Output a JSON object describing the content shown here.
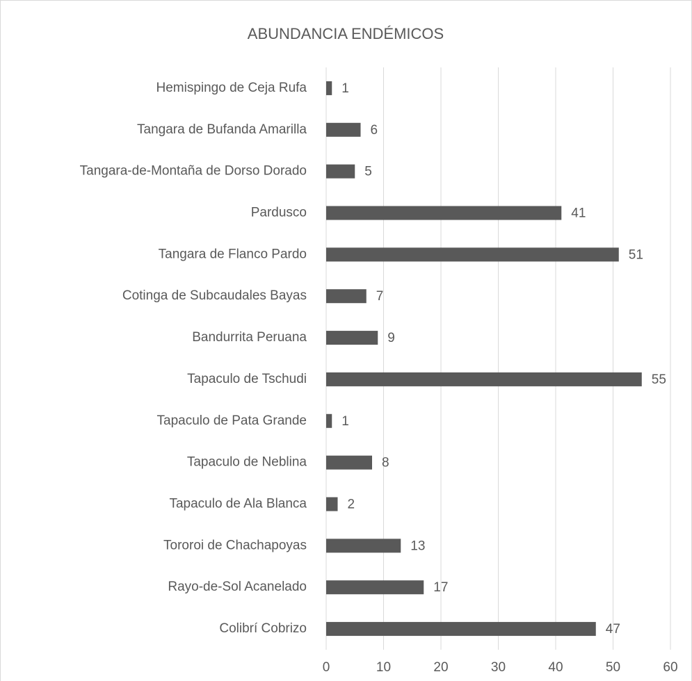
{
  "chart_data": {
    "type": "barh",
    "title": "ABUNDANCIA ENDÉMICOS",
    "categories": [
      "Hemispingo de Ceja Rufa",
      "Tangara de Bufanda Amarilla",
      "Tangara-de-Montaña de Dorso Dorado",
      "Pardusco",
      "Tangara de Flanco Pardo",
      "Cotinga de Subcaudales Bayas",
      "Bandurrita Peruana",
      "Tapaculo de Tschudi",
      "Tapaculo de Pata Grande",
      "Tapaculo de Neblina",
      "Tapaculo de Ala Blanca",
      "Tororoi de Chachapoyas",
      "Rayo-de-Sol Acanelado",
      "Colibrí Cobrizo"
    ],
    "values": [
      1,
      6,
      5,
      41,
      51,
      7,
      9,
      55,
      1,
      8,
      2,
      13,
      17,
      47
    ],
    "color": "#595959",
    "xlim": [
      0,
      60
    ],
    "xticks": [
      0,
      10,
      20,
      30,
      40,
      50,
      60
    ],
    "grid": true
  }
}
